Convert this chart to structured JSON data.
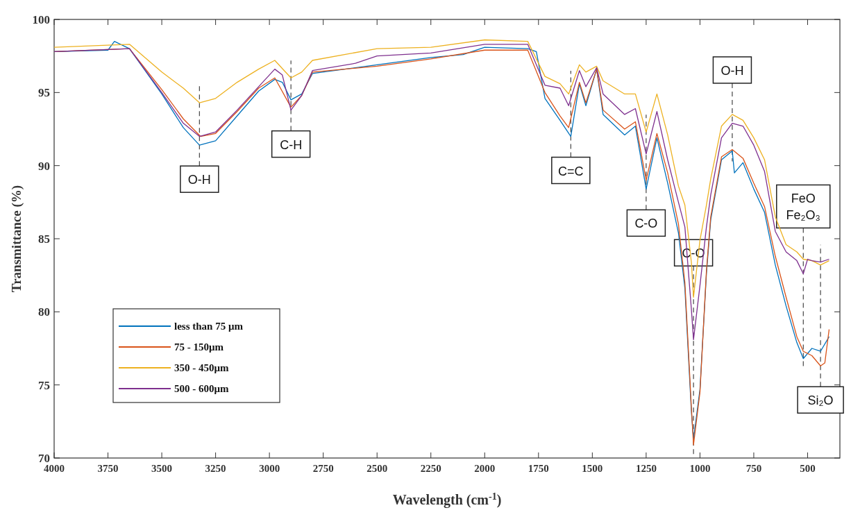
{
  "chart_data": {
    "type": "line",
    "xlabel": "Wavelength (cm$^{-1}$)",
    "ylabel": "Transmittance (%)",
    "xlim": [
      4000,
      350
    ],
    "xticks": [
      4000,
      3750,
      3500,
      3250,
      3000,
      2750,
      2500,
      2250,
      2000,
      1750,
      1500,
      1250,
      1000,
      750,
      500
    ],
    "ylim": [
      70,
      100
    ],
    "yticks": [
      70,
      75,
      80,
      85,
      90,
      95,
      100
    ],
    "legend": "bottom left",
    "grid": false,
    "line_style": "solid",
    "marker": "none",
    "series": [
      {
        "name": "less than 75 μm",
        "color": "#0072bd",
        "x": [
          4000,
          3750,
          3720,
          3650,
          3500,
          3400,
          3325,
          3250,
          3150,
          3050,
          2975,
          2940,
          2900,
          2850,
          2800,
          2500,
          2250,
          2100,
          2000,
          1800,
          1760,
          1720,
          1650,
          1600,
          1560,
          1530,
          1480,
          1450,
          1350,
          1300,
          1250,
          1200,
          1150,
          1100,
          1070,
          1040,
          1030,
          1000,
          970,
          950,
          900,
          850,
          840,
          800,
          750,
          700,
          650,
          600,
          550,
          520,
          480,
          440,
          400
        ],
        "values": [
          97.8,
          97.9,
          98.5,
          98.0,
          94.9,
          92.6,
          91.4,
          91.7,
          93.4,
          95.1,
          95.9,
          95.7,
          94.5,
          94.9,
          96.3,
          96.9,
          97.4,
          97.6,
          98.1,
          98.0,
          97.8,
          94.6,
          93.1,
          92.0,
          95.6,
          94.1,
          96.6,
          93.5,
          92.1,
          92.7,
          88.4,
          91.9,
          88.8,
          85.4,
          81.6,
          73.2,
          71.3,
          74.7,
          82.6,
          86.3,
          90.4,
          91.0,
          89.5,
          90.2,
          88.4,
          86.8,
          83.2,
          80.4,
          77.9,
          76.8,
          77.5,
          77.3,
          78.3
        ]
      },
      {
        "name": "75 - 150μm",
        "color": "#d95319",
        "x": [
          4000,
          3650,
          3500,
          3400,
          3320,
          3250,
          3150,
          3050,
          2975,
          2900,
          2850,
          2800,
          2500,
          2250,
          2000,
          1800,
          1720,
          1650,
          1610,
          1560,
          1530,
          1480,
          1450,
          1350,
          1300,
          1250,
          1200,
          1150,
          1100,
          1070,
          1040,
          1030,
          1000,
          970,
          950,
          900,
          850,
          800,
          750,
          700,
          650,
          600,
          550,
          520,
          480,
          440,
          420,
          400
        ],
        "values": [
          97.8,
          98.0,
          95.2,
          93.2,
          92.0,
          92.2,
          93.7,
          95.3,
          96.0,
          94.0,
          94.8,
          96.4,
          96.8,
          97.3,
          97.9,
          97.9,
          95.0,
          93.4,
          92.6,
          95.7,
          94.3,
          96.6,
          93.8,
          92.5,
          93.0,
          89.0,
          92.2,
          89.5,
          86.0,
          82.0,
          73.5,
          70.9,
          74.5,
          82.8,
          86.5,
          90.6,
          91.1,
          90.5,
          88.8,
          87.2,
          83.8,
          81.0,
          78.3,
          77.3,
          77.0,
          76.3,
          76.5,
          78.8
        ]
      },
      {
        "name": "350 - 450μm",
        "color": "#edb120",
        "x": [
          4000,
          3650,
          3500,
          3400,
          3325,
          3250,
          3150,
          3050,
          2975,
          2900,
          2850,
          2800,
          2500,
          2250,
          2000,
          1800,
          1720,
          1650,
          1610,
          1560,
          1530,
          1480,
          1450,
          1350,
          1300,
          1250,
          1200,
          1150,
          1100,
          1070,
          1040,
          1030,
          1000,
          970,
          950,
          900,
          850,
          800,
          750,
          700,
          650,
          600,
          550,
          520,
          480,
          440,
          400
        ],
        "values": [
          98.1,
          98.3,
          96.4,
          95.3,
          94.3,
          94.6,
          95.7,
          96.6,
          97.2,
          96.0,
          96.4,
          97.2,
          98.0,
          98.1,
          98.6,
          98.5,
          96.1,
          95.6,
          94.9,
          96.9,
          96.4,
          96.8,
          95.8,
          94.9,
          94.9,
          92.3,
          94.9,
          92.1,
          88.6,
          87.3,
          83.4,
          81.0,
          84.9,
          87.3,
          89.1,
          92.7,
          93.5,
          93.1,
          91.9,
          90.4,
          86.5,
          84.6,
          84.1,
          83.6,
          83.5,
          83.2,
          83.5
        ]
      },
      {
        "name": "500 - 600μm",
        "color": "#7e2f8e",
        "x": [
          4000,
          3650,
          3500,
          3400,
          3325,
          3250,
          3150,
          3050,
          2975,
          2940,
          2900,
          2850,
          2800,
          2600,
          2500,
          2250,
          2000,
          1800,
          1720,
          1650,
          1610,
          1560,
          1530,
          1480,
          1450,
          1350,
          1300,
          1250,
          1200,
          1150,
          1100,
          1070,
          1040,
          1030,
          1000,
          970,
          950,
          900,
          850,
          800,
          750,
          700,
          650,
          600,
          550,
          520,
          500,
          480,
          440,
          400
        ],
        "values": [
          97.8,
          98.0,
          95.0,
          92.9,
          92.0,
          92.3,
          93.8,
          95.4,
          96.6,
          96.2,
          93.8,
          94.8,
          96.5,
          97.0,
          97.5,
          97.7,
          98.3,
          98.3,
          95.5,
          95.3,
          94.1,
          96.5,
          95.4,
          96.7,
          94.9,
          93.5,
          93.9,
          90.8,
          93.7,
          90.4,
          87.5,
          85.8,
          80.2,
          78.1,
          81.8,
          85.8,
          88.0,
          91.9,
          92.9,
          92.7,
          91.4,
          89.6,
          85.5,
          84.1,
          83.5,
          82.6,
          83.6,
          83.5,
          83.4,
          83.6
        ]
      }
    ],
    "annotations": [
      {
        "text": "O-H",
        "x": 3325,
        "y": 91.4
      },
      {
        "text": "C-H",
        "x": 2900,
        "y": 93.8
      },
      {
        "text": "C=C",
        "x": 1600,
        "y": 92.0
      },
      {
        "text": "C-O",
        "x": 1250,
        "y": 88.4
      },
      {
        "text": "C-O",
        "x": 1030,
        "y": 81.0
      },
      {
        "text": "O-H",
        "x": 850,
        "y": 93.5
      },
      {
        "text": "FeO\nFe₂O₃",
        "x": 520,
        "y": 83.6
      },
      {
        "text": "Si₂O",
        "x": 440,
        "y": 76.3
      }
    ]
  }
}
